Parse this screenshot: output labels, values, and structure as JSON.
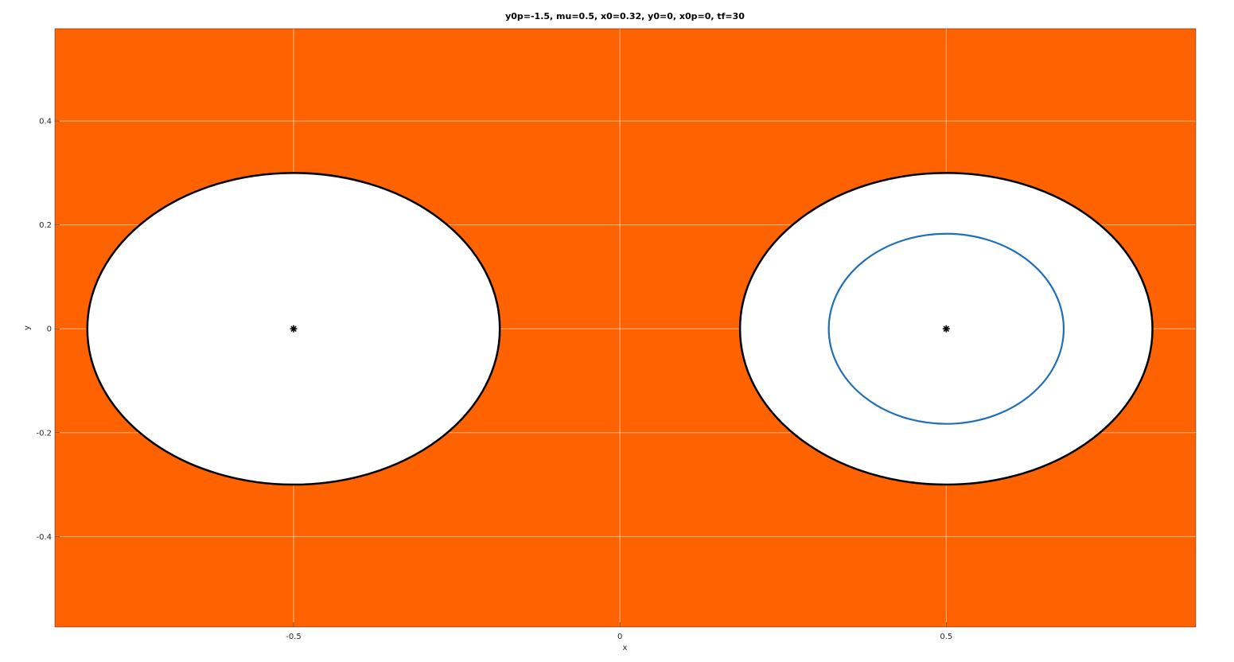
{
  "chart_data": {
    "type": "line",
    "title": "y0p=-1.5, mu=0.5, x0=0.32, y0=0, x0p=0, tf=30",
    "xlabel": "x",
    "ylabel": "y",
    "xlim": [
      -0.8657,
      0.8824
    ],
    "ylim": [
      -0.5741,
      0.5778
    ],
    "grid": true,
    "background_color": "#ff6201",
    "x_ticks": [
      -0.5,
      0,
      0.5
    ],
    "x_tick_labels": [
      "-0.5",
      "0",
      "0.5"
    ],
    "y_ticks": [
      -0.4,
      -0.2,
      0,
      0.2,
      0.4
    ],
    "y_tick_labels": [
      "-0.4",
      "-0.2",
      "0",
      "0.2",
      "0.4"
    ],
    "regions": [
      {
        "center": [
          -0.5,
          0
        ],
        "rx": 0.316,
        "ry": 0.3,
        "fill": "#ffffff",
        "edge_color": "#000000"
      },
      {
        "center": [
          0.5,
          0
        ],
        "rx": 0.316,
        "ry": 0.3,
        "fill": "#ffffff",
        "edge_color": "#000000"
      }
    ],
    "series": [
      {
        "center": [
          0.5,
          0
        ],
        "rx": 0.18,
        "ry": 0.183,
        "color": "#1f6fb8"
      }
    ],
    "markers": [
      {
        "x": -0.5,
        "y": 0,
        "symbol": "asterisk",
        "color": "#000000"
      },
      {
        "x": 0.5,
        "y": 0,
        "symbol": "asterisk",
        "color": "#000000"
      }
    ]
  }
}
